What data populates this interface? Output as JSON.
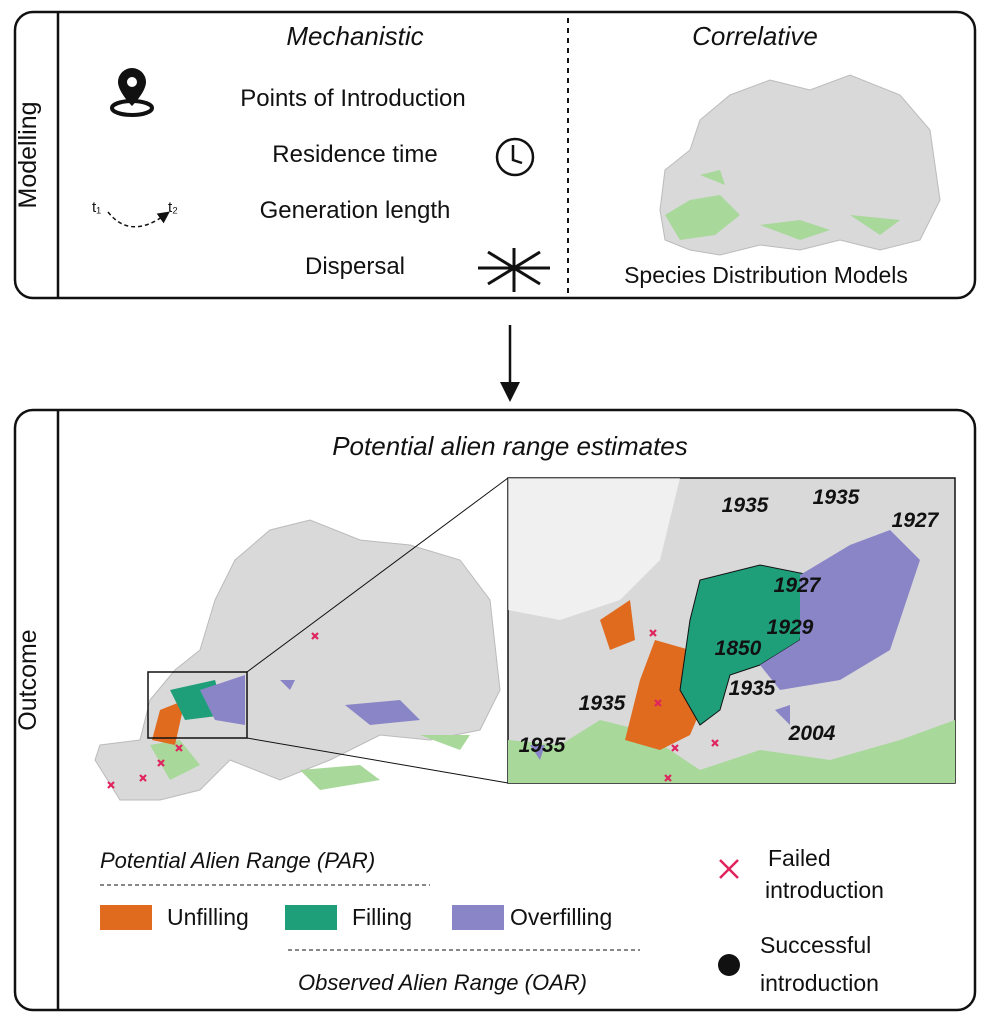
{
  "modelling": {
    "label": "Modelling",
    "mechanistic": {
      "title": "Mechanistic",
      "items": [
        "Points of Introduction",
        "Residence time",
        "Generation length",
        "Dispersal"
      ],
      "t1": "t₁",
      "t2": "t₂"
    },
    "correlative": {
      "title": "Correlative",
      "caption": "Species Distribution Models"
    }
  },
  "outcome": {
    "label": "Outcome",
    "title": "Potential alien range estimates",
    "years": [
      "1935",
      "1935",
      "1927",
      "1927",
      "1929",
      "1850",
      "1935",
      "1935",
      "1935",
      "2004"
    ],
    "legend": {
      "par": "Potential Alien Range (PAR)",
      "oar": "Observed Alien Range (OAR)",
      "unfilling": "Unfilling",
      "filling": "Filling",
      "overfilling": "Overfilling",
      "failed": [
        "Failed",
        "introduction"
      ],
      "successful": [
        "Successful",
        "introduction"
      ]
    }
  }
}
